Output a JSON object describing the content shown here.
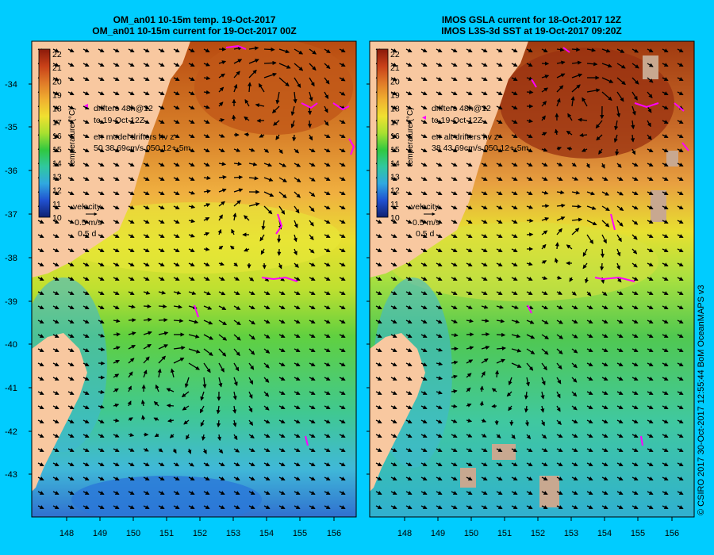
{
  "left_panel": {
    "title_line1": "OM_an01 10-15m temp. 19-Oct-2017",
    "title_line2": "OM_an01 10-15m current for 19-Oct-2017 00Z",
    "drifters_label_1": "drifters 48h@12",
    "drifters_label_2": "to 19-Oct 12Z",
    "err_label": "err model drifters hv z",
    "err_values": "50 38 69cm/s 050 12+-5m",
    "velocity_title": "velocity",
    "velocity_speed": "0.5 m/s",
    "velocity_time": "0.5 d"
  },
  "right_panel": {
    "title_line1": "IMOS GSLA current for 18-Oct-2017 12Z",
    "title_line2": "IMOS L3S-3d SST at 19-Oct-2017 09:20Z",
    "drifters_label_1": "drifters 48h@12",
    "drifters_label_2": "to 19-Oct 12Z",
    "err_label": "err alt drifters hv z",
    "err_values": "38 43 69cm/s 050 12+-5m",
    "velocity_title": "velocity",
    "velocity_speed": "0.5 m/s",
    "velocity_time": "0.5 d"
  },
  "colorbar": {
    "label": "temperature (°C)",
    "ticks": [
      "22",
      "21",
      "20",
      "19",
      "18",
      "17",
      "16",
      "15",
      "14",
      "13",
      "12",
      "11",
      "10"
    ]
  },
  "axes": {
    "lat_ticks": [
      "-34",
      "-35",
      "-36",
      "-37",
      "-38",
      "-39",
      "-40",
      "-41",
      "-42",
      "-43"
    ],
    "lon_ticks": [
      "148",
      "149",
      "150",
      "151",
      "152",
      "153",
      "154",
      "155",
      "156"
    ]
  },
  "credit": "© CSIRO 2017   30-Oct-2017 12:55:44 BoM OceanMAPS v3",
  "colors": {
    "background": "#00ccff",
    "land": "#f8c8a0",
    "drifter": "#ff00ff"
  }
}
